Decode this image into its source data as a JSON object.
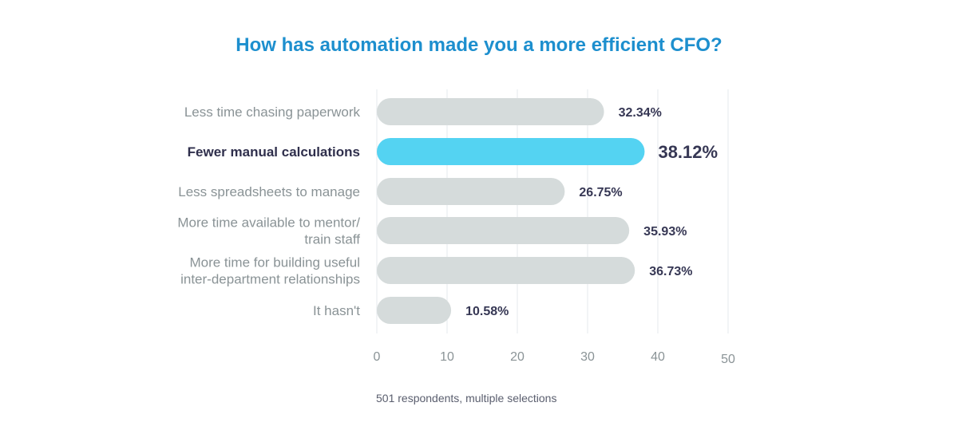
{
  "chart_data": {
    "type": "bar",
    "orientation": "horizontal",
    "title": "How has automation made you a more efficient CFO?",
    "categories": [
      [
        "Less time chasing paperwork"
      ],
      [
        "Fewer manual calculations"
      ],
      [
        "Less spreadsheets to manage"
      ],
      [
        "More time available to mentor/",
        "train staff"
      ],
      [
        "More time for building useful",
        "inter-department relationships"
      ],
      [
        "It hasn't"
      ]
    ],
    "values": [
      32.34,
      38.12,
      26.75,
      35.93,
      36.73,
      10.58
    ],
    "value_labels": [
      "32.34%",
      "38.12%",
      "26.75%",
      "35.93%",
      "36.73%",
      "10.58%"
    ],
    "highlight_index": 1,
    "xlim": [
      0,
      50
    ],
    "x_ticks": [
      "0",
      "10",
      "20",
      "30",
      "40",
      "50"
    ],
    "footnote": "501 respondents, multiple selections",
    "grid": true,
    "colors": {
      "title": "#1d8fce",
      "bar": "#d5dbdb",
      "bar_highlight": "#54d3f2",
      "label": "#8a9396",
      "label_highlight": "#2f2f4c",
      "value": "#363754",
      "tick": "#8a9396",
      "grid": "#e6eaec",
      "footnote": "#5a5e6e"
    }
  }
}
